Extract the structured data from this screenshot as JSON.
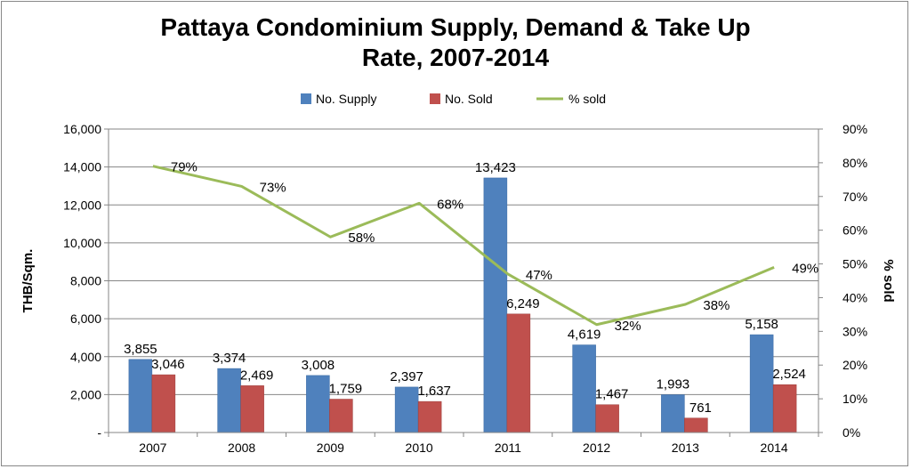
{
  "chart_data": {
    "type": "bar",
    "title_line1": "Pattaya Condominium Supply, Demand & Take Up",
    "title_line2": "Rate, 2007-2014",
    "categories": [
      "2007",
      "2008",
      "2009",
      "2010",
      "2011",
      "2012",
      "2013",
      "2014"
    ],
    "series": [
      {
        "name": "No. Supply",
        "kind": "bar",
        "axis": "left",
        "color": "#4F81BD",
        "values": [
          3855,
          3374,
          3008,
          2397,
          13423,
          4619,
          1993,
          5158
        ],
        "labels": [
          "3,855",
          "3,374",
          "3,008",
          "2,397",
          "13,423",
          "4,619",
          "1,993",
          "5,158"
        ]
      },
      {
        "name": "No. Sold",
        "kind": "bar",
        "axis": "left",
        "color": "#C0504D",
        "values": [
          3046,
          2469,
          1759,
          1637,
          6249,
          1467,
          761,
          2524
        ],
        "labels": [
          "3,046",
          "2,469",
          "1,759",
          "1,637",
          "6,249",
          "1,467",
          "761",
          "2,524"
        ]
      },
      {
        "name": "% sold",
        "kind": "line",
        "axis": "right",
        "color": "#9BBB59",
        "values": [
          79,
          73,
          58,
          68,
          47,
          32,
          38,
          49
        ],
        "labels": [
          "79%",
          "73%",
          "58%",
          "68%",
          "47%",
          "32%",
          "38%",
          "49%"
        ]
      }
    ],
    "ylabel": "THB/Sqm.",
    "y2label": "% sold",
    "ylim": [
      0,
      16000
    ],
    "y2lim": [
      0,
      90
    ],
    "yticks": [
      0,
      2000,
      4000,
      6000,
      8000,
      10000,
      12000,
      14000,
      16000
    ],
    "ytick_labels": [
      "-",
      "2,000",
      "4,000",
      "6,000",
      "8,000",
      "10,000",
      "12,000",
      "14,000",
      "16,000"
    ],
    "y2ticks": [
      0,
      10,
      20,
      30,
      40,
      50,
      60,
      70,
      80,
      90
    ],
    "y2tick_labels": [
      "0%",
      "10%",
      "20%",
      "30%",
      "40%",
      "50%",
      "60%",
      "70%",
      "80%",
      "90%"
    ],
    "gridlines": true,
    "legend_position": "top"
  }
}
